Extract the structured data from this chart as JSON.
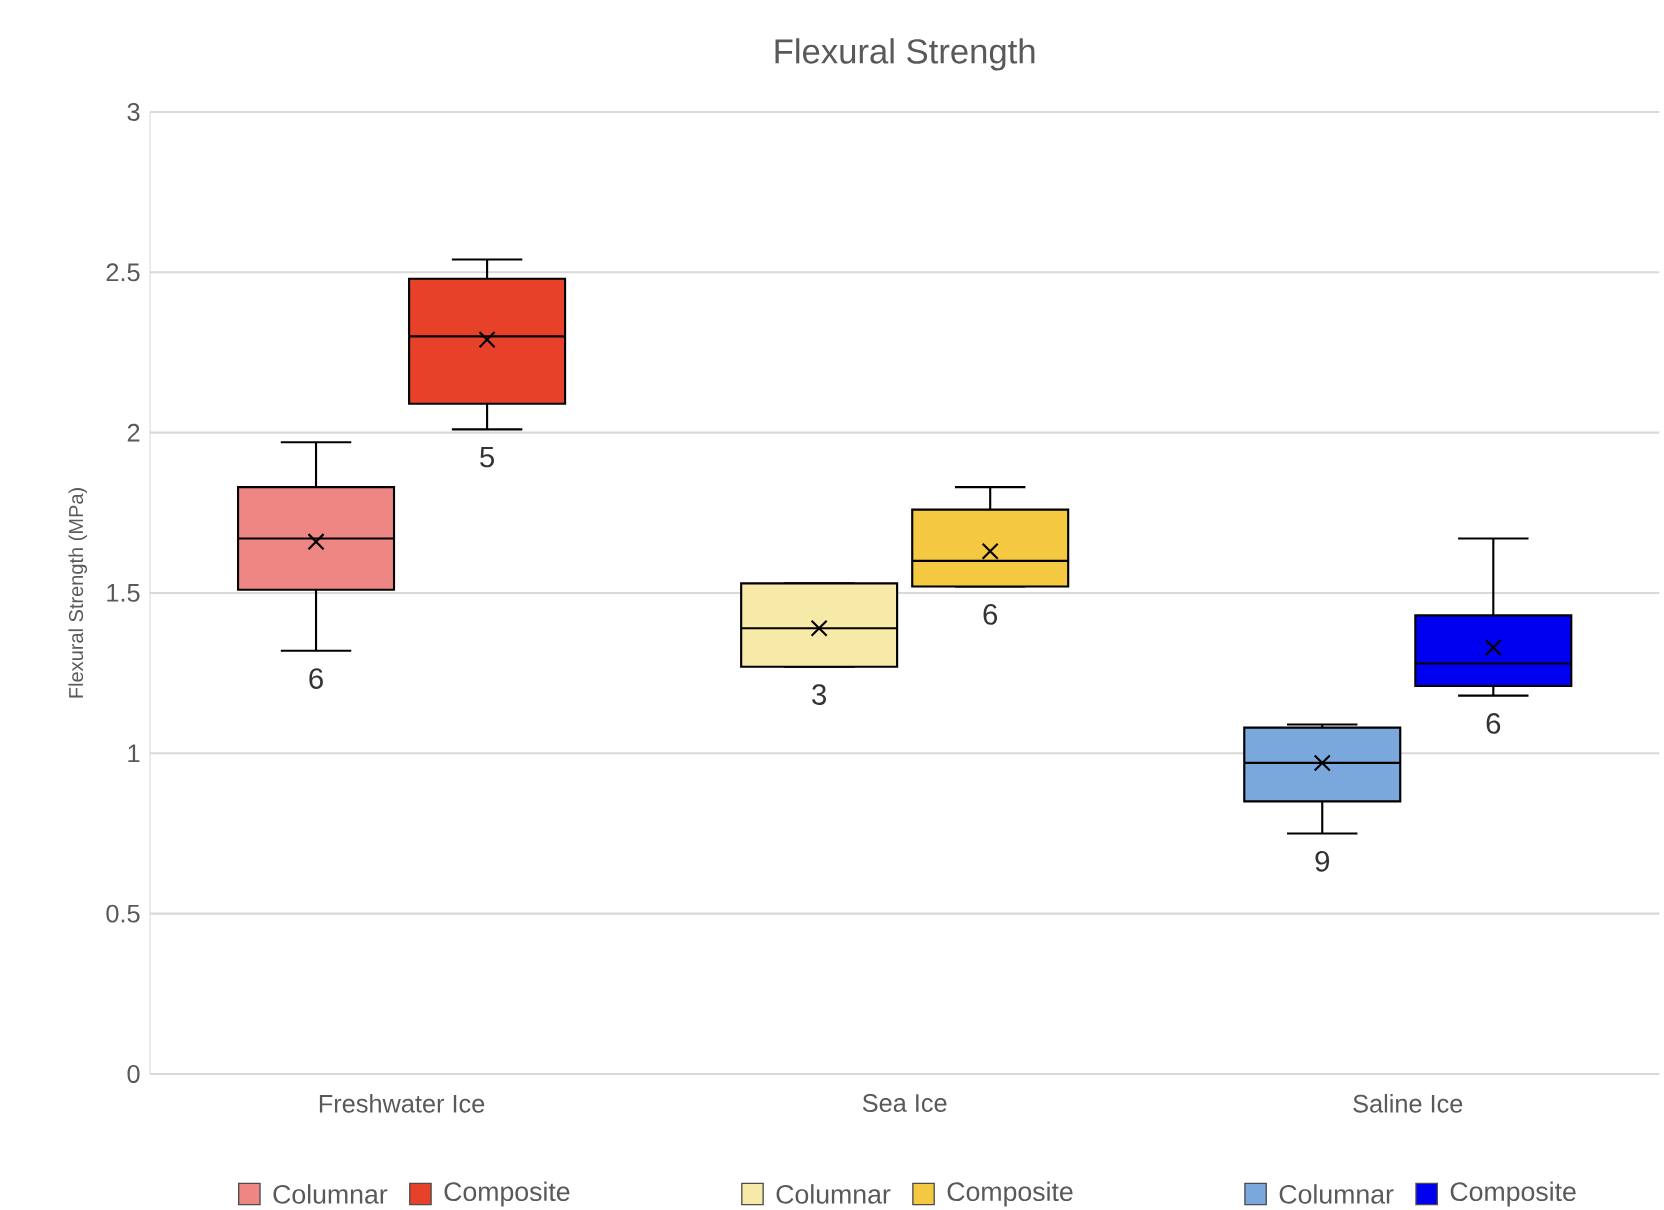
{
  "chart_data": {
    "type": "box",
    "title": "Flexural Strength",
    "ylabel": "Flexural Strength (MPa)",
    "categories": [
      "Freshwater Ice",
      "Sea Ice",
      "Saline Ice"
    ],
    "ylim": [
      0,
      3
    ],
    "yticks": [
      0,
      0.5,
      1,
      1.5,
      2,
      2.5,
      3
    ],
    "grid": "y",
    "legend": "bottom",
    "series": [
      {
        "name": "Columnar",
        "color": "#ee8783",
        "boxes": [
          {
            "low": 1.32,
            "q1": 1.51,
            "median": 1.67,
            "q3": 1.83,
            "high": 1.97,
            "mean": 1.66
          },
          null,
          null
        ],
        "value_labels": [
          "6",
          null,
          null
        ]
      },
      {
        "name": "Composite",
        "color": "#e8412a",
        "boxes": [
          {
            "low": 2.01,
            "q1": 2.09,
            "median": 2.3,
            "q3": 2.48,
            "high": 2.54,
            "mean": 2.29
          },
          null,
          null
        ],
        "value_labels": [
          "5",
          null,
          null
        ]
      },
      {
        "name": "Columnar",
        "color": "#f7e9a8",
        "boxes": [
          null,
          {
            "low": 1.27,
            "q1": 1.27,
            "median": 1.39,
            "q3": 1.53,
            "high": 1.53,
            "mean": 1.39
          },
          null
        ],
        "value_labels": [
          null,
          "3",
          null
        ]
      },
      {
        "name": "Composite",
        "color": "#f5c842",
        "boxes": [
          null,
          {
            "low": 1.52,
            "q1": 1.52,
            "median": 1.6,
            "q3": 1.76,
            "high": 1.83,
            "mean": 1.63
          },
          null
        ],
        "value_labels": [
          null,
          "6",
          null
        ]
      },
      {
        "name": "Columnar",
        "color": "#7aa7dc",
        "boxes": [
          null,
          null,
          {
            "low": 0.75,
            "q1": 0.85,
            "median": 0.97,
            "q3": 1.08,
            "high": 1.09,
            "mean": 0.97
          }
        ],
        "value_labels": [
          null,
          null,
          "9"
        ]
      },
      {
        "name": "Composite",
        "color": "#0000f0",
        "boxes": [
          null,
          null,
          {
            "low": 1.18,
            "q1": 1.21,
            "median": 1.28,
            "q3": 1.43,
            "high": 1.67,
            "mean": 1.33
          }
        ],
        "value_labels": [
          null,
          null,
          "6"
        ]
      }
    ]
  }
}
